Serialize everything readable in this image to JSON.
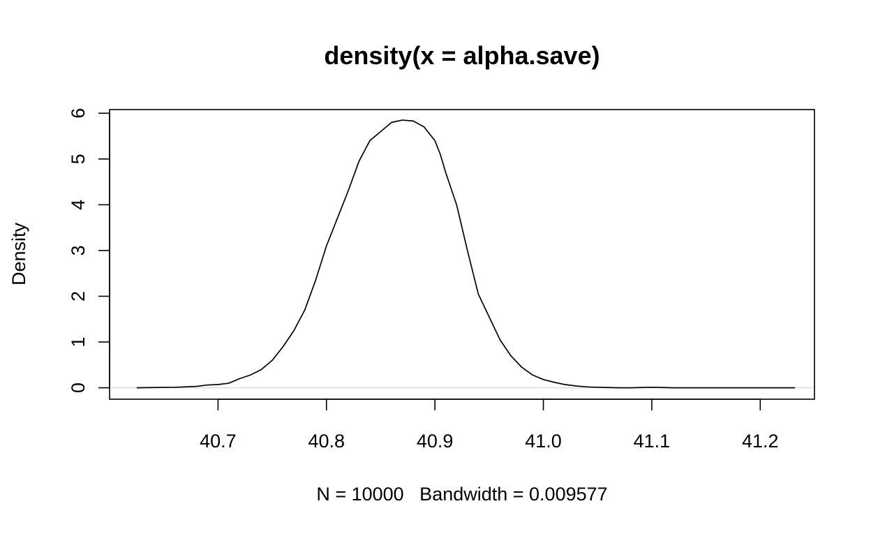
{
  "chart_data": {
    "type": "line",
    "title": "density(x = alpha.save)",
    "xlabel": "N = 10000   Bandwidth = 0.009577",
    "ylabel": "Density",
    "xlim": [
      40.6,
      41.25
    ],
    "ylim": [
      -0.25,
      6.08
    ],
    "xticks": [
      40.7,
      40.8,
      40.9,
      41.0,
      41.1,
      41.2
    ],
    "xtick_labels": [
      "40.7",
      "40.8",
      "40.9",
      "41.0",
      "41.1",
      "41.2"
    ],
    "yticks": [
      0,
      1,
      2,
      3,
      4,
      5,
      6
    ],
    "ytick_labels": [
      "0",
      "1",
      "2",
      "3",
      "4",
      "5",
      "6"
    ],
    "grid": false,
    "zero_line": true,
    "series": [
      {
        "x": [
          40.625,
          40.64,
          40.66,
          40.68,
          40.69,
          40.7,
          40.71,
          40.72,
          40.73,
          40.74,
          40.75,
          40.76,
          40.77,
          40.78,
          40.79,
          40.8,
          40.81,
          40.82,
          40.83,
          40.84,
          40.85,
          40.86,
          40.87,
          40.88,
          40.89,
          40.9,
          40.905,
          40.91,
          40.92,
          40.93,
          40.94,
          40.95,
          40.96,
          40.97,
          40.98,
          40.99,
          41.0,
          41.01,
          41.02,
          41.03,
          41.04,
          41.05,
          41.06,
          41.07,
          41.08,
          41.09,
          41.1,
          41.11,
          41.12,
          41.14,
          41.16,
          41.18,
          41.2,
          41.21,
          41.232
        ],
        "y": [
          0.0,
          0.005,
          0.01,
          0.03,
          0.06,
          0.07,
          0.1,
          0.2,
          0.28,
          0.4,
          0.6,
          0.9,
          1.25,
          1.7,
          2.35,
          3.1,
          3.7,
          4.3,
          4.95,
          5.4,
          5.6,
          5.8,
          5.85,
          5.83,
          5.7,
          5.4,
          5.1,
          4.7,
          4.0,
          3.0,
          2.05,
          1.55,
          1.05,
          0.7,
          0.45,
          0.28,
          0.18,
          0.12,
          0.07,
          0.04,
          0.02,
          0.01,
          0.005,
          0.0,
          0.0,
          0.005,
          0.01,
          0.005,
          0.0,
          0.0,
          0.0,
          0.0,
          0.0,
          0.0,
          0.0
        ]
      }
    ]
  }
}
